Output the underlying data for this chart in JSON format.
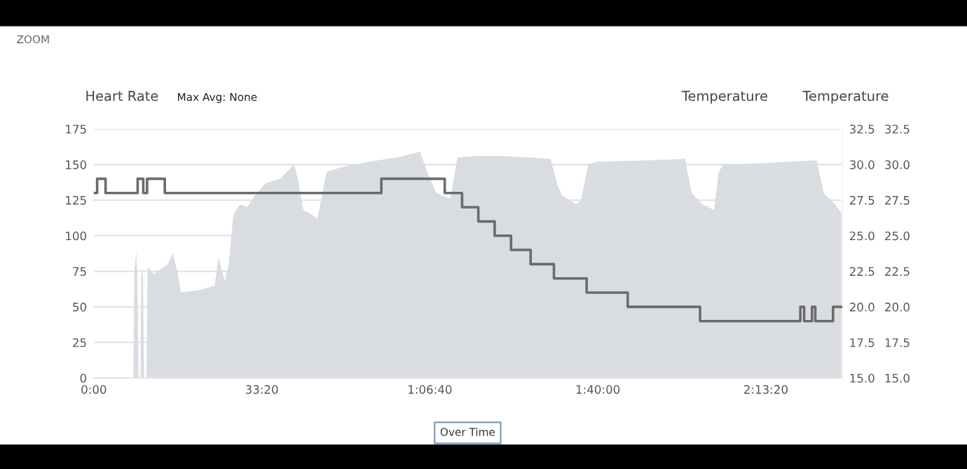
{
  "chart_data": {
    "type": "area",
    "title": "ZOOM",
    "ylabel": "Heart Rate",
    "y2label": "Temperature",
    "y3label": "Temperature",
    "annotations": [
      "Max Avg: None",
      "Over Time"
    ],
    "xlim": [
      0,
      8910
    ],
    "xticks": [
      {
        "value": 0,
        "label": "0:00"
      },
      {
        "value": 2000,
        "label": "33:20"
      },
      {
        "value": 4000,
        "label": "1:06:40"
      },
      {
        "value": 6000,
        "label": "1:40:00"
      },
      {
        "value": 8000,
        "label": "2:13:20"
      }
    ],
    "ylim": [
      0,
      175
    ],
    "yticks": [
      0,
      25,
      50,
      75,
      100,
      125,
      150,
      175
    ],
    "y2lim": [
      15,
      32.5
    ],
    "y2ticks": [
      {
        "value": 15,
        "label": "15.0"
      },
      {
        "value": 17.5,
        "label": "17.5"
      },
      {
        "value": 20,
        "label": "20.0"
      },
      {
        "value": 22.5,
        "label": "22.5"
      },
      {
        "value": 25,
        "label": "25.0"
      },
      {
        "value": 27.5,
        "label": "27.5"
      },
      {
        "value": 30,
        "label": "30.0"
      },
      {
        "value": 32.5,
        "label": "32.5"
      }
    ],
    "y3lim": [
      15,
      32.5
    ],
    "y3ticks": [
      {
        "value": 15,
        "label": "15.0"
      },
      {
        "value": 17.5,
        "label": "17.5"
      },
      {
        "value": 20,
        "label": "20.0"
      },
      {
        "value": 22.5,
        "label": "22.5"
      },
      {
        "value": 25,
        "label": "25.0"
      },
      {
        "value": 27.5,
        "label": "27.5"
      },
      {
        "value": 30,
        "label": "30.0"
      },
      {
        "value": 32.5,
        "label": "32.5"
      }
    ],
    "grid": "y",
    "legend": false,
    "series": [
      {
        "color": "#d9dde1",
        "x": [
          0,
          470,
          483,
          505,
          520,
          533,
          556,
          565,
          585,
          600,
          628,
          640,
          717,
          883,
          939,
          995,
          1039,
          1272,
          1439,
          1484,
          1561,
          1606,
          1661,
          1745,
          1828,
          1911,
          2050,
          2217,
          2384,
          2428,
          2495,
          2595,
          2662,
          2706,
          2772,
          2939,
          3272,
          3606,
          3884,
          3967,
          4078,
          4245,
          4328,
          4550,
          4884,
          5439,
          5522,
          5578,
          5745,
          5800,
          5884,
          5995,
          6606,
          7039,
          7117,
          7245,
          7384,
          7439,
          7495,
          7995,
          8272,
          8606,
          8689,
          8828,
          8910
        ],
        "values": [
          0,
          0,
          75,
          89,
          70,
          0,
          0,
          78,
          70,
          0,
          0,
          78,
          73,
          80,
          88,
          75,
          60,
          62,
          65,
          85,
          68,
          80,
          115,
          122,
          120,
          128,
          137,
          140,
          150,
          140,
          118,
          115,
          112,
          125,
          145,
          148,
          152,
          155,
          159,
          145,
          130,
          126,
          155,
          156,
          156,
          154,
          135,
          128,
          122,
          125,
          150,
          152,
          153,
          154,
          130,
          122,
          118,
          145,
          150,
          151,
          152,
          153,
          130,
          122,
          115
        ]
      },
      {
        "type": "step",
        "axis": "y2",
        "color": "#6b6b6b",
        "line_style": "solid",
        "x": [
          0,
          40,
          140,
          522,
          589,
          634,
          845,
          3423,
          4178,
          4384,
          4578,
          4772,
          4967,
          5200,
          5478,
          5867,
          6356,
          7217,
          8411,
          8456,
          8550,
          8589,
          8800,
          8910
        ],
        "values": [
          28,
          29,
          28,
          29,
          28,
          29,
          28,
          29,
          28,
          27,
          26,
          25,
          24,
          23,
          22,
          21,
          20,
          19,
          20,
          19,
          20,
          19,
          20,
          20
        ]
      }
    ]
  }
}
